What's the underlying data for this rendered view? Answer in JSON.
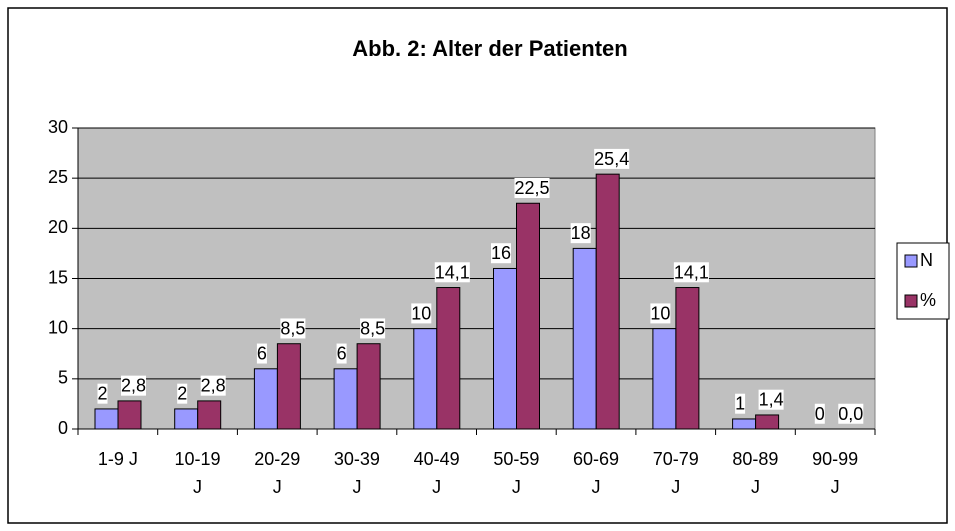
{
  "chart_data": {
    "type": "bar",
    "title": "Abb. 2: Alter der Patienten",
    "categories": [
      "1-9 J",
      "10-19 J",
      "20-29 J",
      "30-39 J",
      "40-49 J",
      "50-59 J",
      "60-69 J",
      "70-79 J",
      "80-89 J",
      "90-99 J"
    ],
    "series": [
      {
        "name": "N",
        "color": "#9999ff",
        "values": [
          2,
          2,
          6,
          6,
          10,
          16,
          18,
          10,
          1,
          0
        ]
      },
      {
        "name": "%",
        "color": "#993366",
        "values": [
          2.8,
          2.8,
          8.5,
          8.5,
          14.1,
          22.5,
          25.4,
          14.1,
          1.4,
          0.0
        ],
        "value_labels": [
          "2,8",
          "2,8",
          "8,5",
          "8,5",
          "14,1",
          "22,5",
          "25,4",
          "14,1",
          "1,4",
          "0,0"
        ]
      }
    ],
    "ylim": [
      0,
      30
    ],
    "yticks": [
      0,
      5,
      10,
      15,
      20,
      25,
      30
    ],
    "grid": true,
    "legend": "right"
  }
}
